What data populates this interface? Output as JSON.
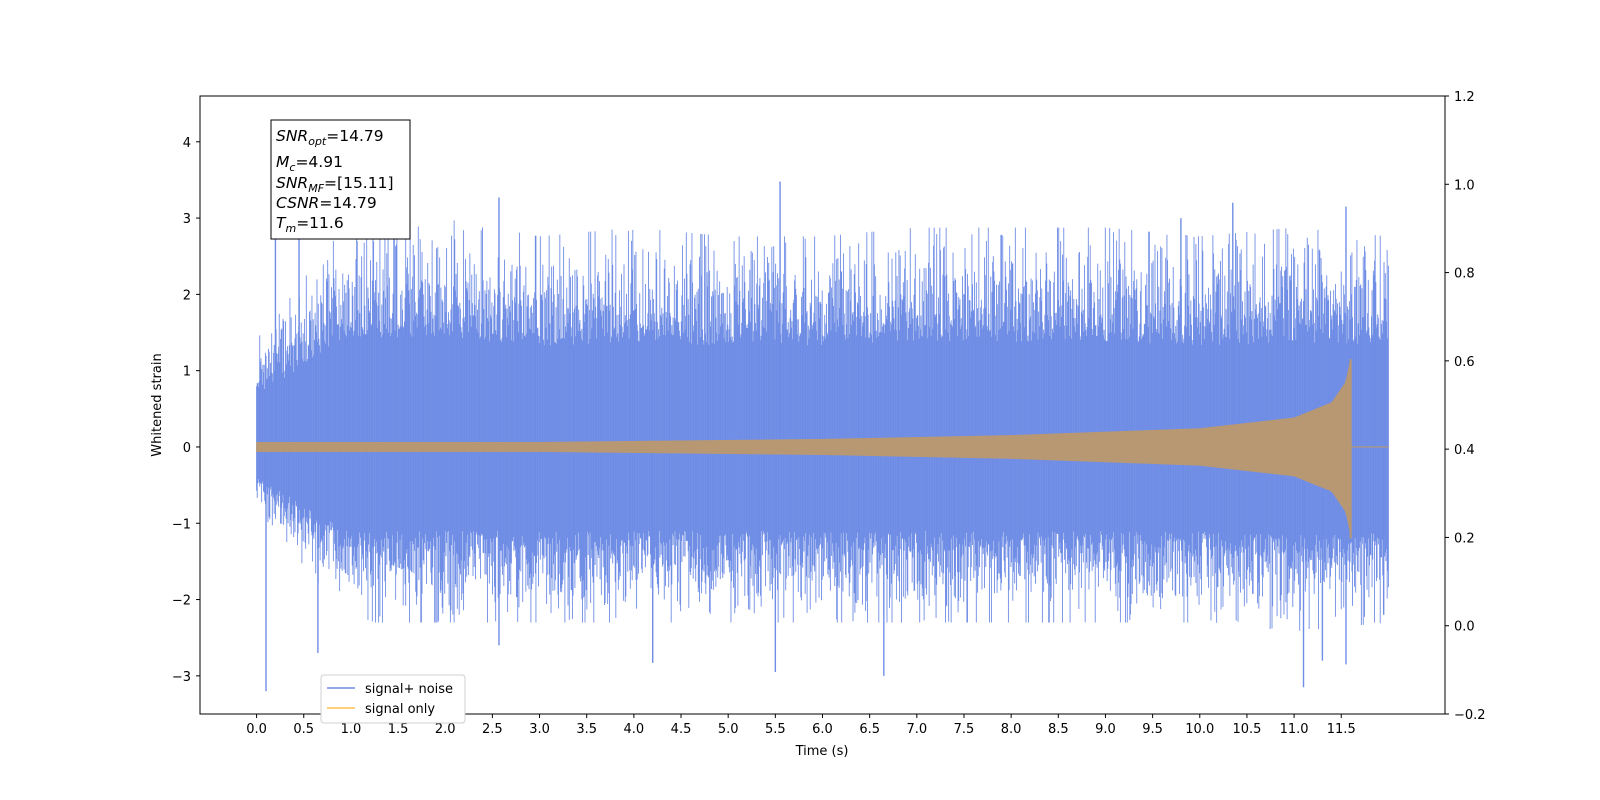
{
  "chart_data": {
    "type": "line",
    "xlabel": "Time (s)",
    "ylabel": "Whitened strain",
    "xlim": [
      -0.6,
      12.6
    ],
    "ylim": [
      -3.5,
      4.6
    ],
    "ylim_right": [
      -0.2,
      1.2
    ],
    "x_ticks": [
      "0.0",
      "0.5",
      "1.0",
      "1.5",
      "2.0",
      "2.5",
      "3.0",
      "3.5",
      "4.0",
      "4.5",
      "5.0",
      "5.5",
      "6.0",
      "6.5",
      "7.0",
      "7.5",
      "8.0",
      "8.5",
      "9.0",
      "9.5",
      "10.0",
      "10.5",
      "11.0",
      "11.5"
    ],
    "y_ticks": [
      "−3",
      "−2",
      "−1",
      "0",
      "1",
      "2",
      "3",
      "4"
    ],
    "y_ticks_right": [
      "−0.2",
      "0.0",
      "0.2",
      "0.4",
      "0.6",
      "0.8",
      "1.0",
      "1.2"
    ],
    "grid": false,
    "legend_position": "bottom-left",
    "colors": {
      "noise": "#6f8de5",
      "signal": "#ffc04d",
      "overlap": "#b89873"
    },
    "series": [
      {
        "name": "signal+ noise",
        "description": "whitened noisy strain, approx. Gaussian with std ~0.85",
        "x_start": 0.0,
        "x_end": 12.0,
        "envelope_top": [
          1.25,
          2.6,
          2.6,
          2.4,
          2.5,
          2.4,
          2.4,
          2.5,
          2.5,
          2.5,
          2.4,
          2.5,
          2.4
        ],
        "envelope_bottom": [
          -0.7,
          -2.0,
          -2.0,
          -2.0,
          -2.0,
          -2.0,
          -2.0,
          -2.0,
          -2.0,
          -2.0,
          -2.0,
          -2.1,
          -2.0
        ],
        "peaks": [
          {
            "x": 0.1,
            "y": -3.2
          },
          {
            "x": 0.2,
            "y": 2.75
          },
          {
            "x": 0.45,
            "y": 2.8
          },
          {
            "x": 0.65,
            "y": -2.7
          },
          {
            "x": 2.57,
            "y": 3.27
          },
          {
            "x": 2.57,
            "y": -2.6
          },
          {
            "x": 4.2,
            "y": -2.83
          },
          {
            "x": 5.55,
            "y": 3.48
          },
          {
            "x": 5.5,
            "y": -2.95
          },
          {
            "x": 6.65,
            "y": -3.0
          },
          {
            "x": 6.2,
            "y": 2.3
          },
          {
            "x": 9.8,
            "y": 3.0
          },
          {
            "x": 10.35,
            "y": 3.2
          },
          {
            "x": 11.1,
            "y": -3.15
          },
          {
            "x": 11.55,
            "y": 3.15
          },
          {
            "x": 11.3,
            "y": -2.8
          },
          {
            "x": 11.55,
            "y": -2.85
          },
          {
            "x": 11.85,
            "y": 2.25
          },
          {
            "x": 11.95,
            "y": -2.2
          }
        ]
      },
      {
        "name": "signal only",
        "description": "chirp waveform, amplitude grows until merger then drops to zero",
        "amplitude_points": [
          {
            "t": 0.0,
            "a": 0.06
          },
          {
            "t": 3.0,
            "a": 0.06
          },
          {
            "t": 6.0,
            "a": 0.1
          },
          {
            "t": 8.0,
            "a": 0.15
          },
          {
            "t": 10.0,
            "a": 0.24
          },
          {
            "t": 11.0,
            "a": 0.38
          },
          {
            "t": 11.4,
            "a": 0.58
          },
          {
            "t": 11.55,
            "a": 0.85
          },
          {
            "t": 11.6,
            "a": 1.15
          }
        ],
        "merger_time": 11.6,
        "end_time": 12.0
      }
    ],
    "annotations": {
      "snr_opt_base": "SNR",
      "snr_opt_sub": "opt",
      "snr_opt_value": "=14.79",
      "mc_base": "M",
      "mc_sub": "c",
      "mc_value": "=4.91",
      "snr_mf_base": "SNR",
      "snr_mf_sub": "MF",
      "snr_mf_value": "=[15.11]",
      "csnr_base": "CSNR",
      "csnr_value": "=14.79",
      "tm_base": "T",
      "tm_sub": "m",
      "tm_value": "=11.6"
    }
  }
}
